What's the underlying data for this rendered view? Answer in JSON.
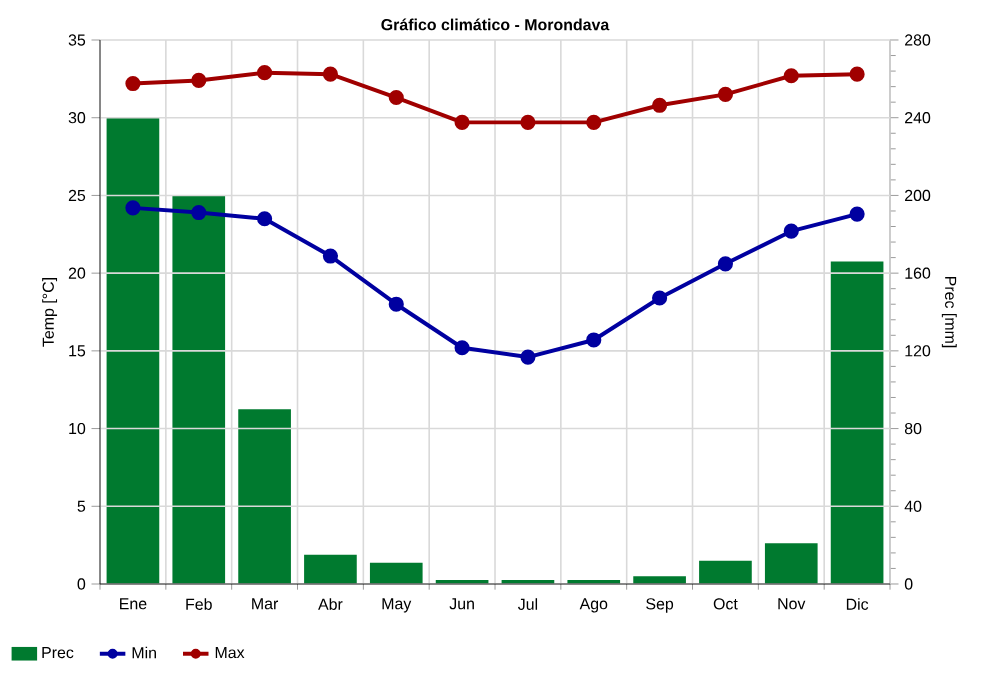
{
  "chart_data": {
    "type": "line",
    "title": "Gráfico climático - Morondava",
    "categories": [
      "Ene",
      "Feb",
      "Mar",
      "Abr",
      "May",
      "Jun",
      "Jul",
      "Ago",
      "Sep",
      "Oct",
      "Nov",
      "Dic"
    ],
    "ylabel": "Temp [°C]",
    "y2label": "Prec [mm]",
    "ylim": [
      0,
      35
    ],
    "yticks": [
      0,
      5,
      10,
      15,
      20,
      25,
      30,
      35
    ],
    "y2lim": [
      0,
      280
    ],
    "y2ticks": [
      0,
      40,
      80,
      120,
      160,
      200,
      240,
      280
    ],
    "grid": true,
    "legend": "bottom",
    "marker": "circle",
    "series": [
      {
        "name": "Prec",
        "type": "bar",
        "axis": "y2",
        "color": "#007a2f",
        "values": [
          240,
          200,
          90,
          15,
          11,
          2,
          2,
          2,
          4,
          12,
          21,
          166
        ]
      },
      {
        "name": "Min",
        "color": "#0000a0",
        "values": [
          24.2,
          23.9,
          23.5,
          21.1,
          18.0,
          15.2,
          14.6,
          15.7,
          18.4,
          20.6,
          22.7,
          23.8
        ]
      },
      {
        "name": "Max",
        "color": "#a00000",
        "values": [
          32.2,
          32.4,
          32.9,
          32.8,
          31.3,
          29.7,
          29.7,
          29.7,
          30.8,
          31.5,
          32.7,
          32.8
        ]
      }
    ]
  }
}
